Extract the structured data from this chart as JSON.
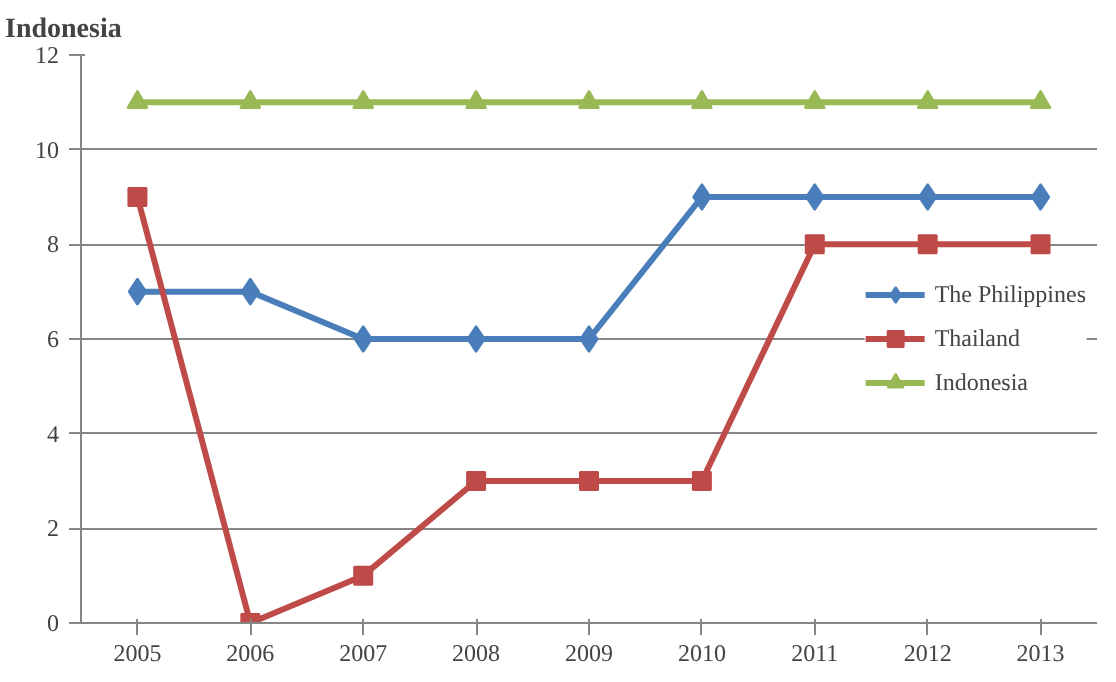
{
  "chart_data": {
    "type": "line",
    "title": "Indonesia",
    "categories": [
      "2005",
      "2006",
      "2007",
      "2008",
      "2009",
      "2010",
      "2011",
      "2012",
      "2013"
    ],
    "series": [
      {
        "name": "The Philippines",
        "color": "#4a7ebb",
        "marker": "diamond",
        "values": [
          7,
          7,
          6,
          6,
          6,
          9,
          9,
          9,
          9
        ]
      },
      {
        "name": "Thailand",
        "color": "#be4b48",
        "marker": "square",
        "values": [
          9,
          0,
          1,
          3,
          3,
          3,
          8,
          8,
          8
        ]
      },
      {
        "name": "Indonesia",
        "color": "#98b954",
        "marker": "triangle",
        "values": [
          11,
          11,
          11,
          11,
          11,
          11,
          11,
          11,
          11
        ]
      }
    ],
    "ylim": [
      0,
      12
    ],
    "yticks": [
      0,
      2,
      4,
      6,
      8,
      10,
      12
    ],
    "grid": "y",
    "legend": "right",
    "line_style": "solid"
  }
}
